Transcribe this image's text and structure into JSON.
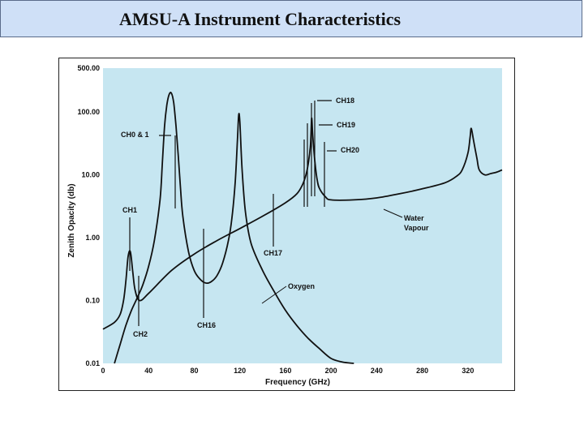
{
  "slide": {
    "title": "AMSU-A Instrument Characteristics"
  },
  "colors": {
    "plot_background": "#c6e6f1",
    "curve": "#111111",
    "title_bar": "#cfe0f7"
  },
  "chart_data": {
    "type": "line",
    "title": "",
    "xlabel": "Frequency (GHz)",
    "ylabel": "Zenith Opacity (db)",
    "xlim": [
      0,
      350
    ],
    "ylim": [
      0.01,
      500
    ],
    "yscale": "log",
    "grid": false,
    "x_ticks": [
      {
        "value": 0,
        "label": "0"
      },
      {
        "value": 40,
        "label": "40"
      },
      {
        "value": 80,
        "label": "80"
      },
      {
        "value": 120,
        "label": "120"
      },
      {
        "value": 160,
        "label": "160"
      },
      {
        "value": 200,
        "label": "200"
      },
      {
        "value": 240,
        "label": "240"
      },
      {
        "value": 280,
        "label": "280"
      },
      {
        "value": 320,
        "label": "320"
      }
    ],
    "y_ticks": [
      {
        "value": 0.01,
        "label": "0.01"
      },
      {
        "value": 0.1,
        "label": "0.10"
      },
      {
        "value": 1,
        "label": "1.00"
      },
      {
        "value": 10,
        "label": "10.00"
      },
      {
        "value": 100,
        "label": "100.00"
      },
      {
        "value": 500,
        "label": "500.00"
      }
    ],
    "series": [
      {
        "name": "Oxygen",
        "x": [
          10,
          15,
          20,
          25,
          30,
          35,
          40,
          45,
          50,
          52,
          54,
          56,
          58,
          60,
          62,
          64,
          66,
          68,
          70,
          75,
          80,
          85,
          90,
          95,
          100,
          105,
          110,
          113,
          116,
          118,
          119,
          120,
          122,
          125,
          130,
          140,
          150,
          160,
          170,
          180,
          190,
          200,
          210,
          220
        ],
        "y": [
          0.01,
          0.02,
          0.04,
          0.07,
          0.11,
          0.18,
          0.35,
          0.9,
          4,
          15,
          60,
          130,
          190,
          200,
          140,
          60,
          20,
          6,
          2.2,
          0.6,
          0.3,
          0.22,
          0.19,
          0.2,
          0.25,
          0.4,
          0.9,
          2,
          8,
          40,
          90,
          70,
          12,
          2.5,
          0.8,
          0.3,
          0.14,
          0.07,
          0.04,
          0.025,
          0.017,
          0.012,
          0.0105,
          0.01
        ]
      },
      {
        "name": "Water Vapour",
        "x": [
          0,
          10,
          15,
          18,
          20,
          22,
          24,
          26,
          28,
          32,
          40,
          60,
          80,
          100,
          120,
          140,
          160,
          170,
          175,
          178,
          180,
          182,
          183,
          184,
          186,
          188,
          190,
          195,
          200,
          220,
          240,
          260,
          280,
          300,
          310,
          315,
          320,
          322,
          323,
          325,
          328,
          330,
          335,
          340,
          345,
          350
        ],
        "y": [
          0.035,
          0.045,
          0.06,
          0.1,
          0.2,
          0.5,
          0.6,
          0.3,
          0.15,
          0.1,
          0.13,
          0.3,
          0.55,
          0.9,
          1.4,
          2.2,
          3.6,
          5,
          7,
          10,
          15,
          30,
          80,
          40,
          15,
          8,
          6,
          4.5,
          4,
          4,
          4.3,
          5,
          6,
          7.5,
          9.5,
          12,
          22,
          40,
          55,
          35,
          18,
          12,
          10,
          10.5,
          11,
          12
        ]
      }
    ],
    "channels": [
      {
        "label": "CH0 & 1",
        "x": 52
      },
      {
        "label": "CH1",
        "x": 23.8
      },
      {
        "label": "CH2",
        "x": 31.4
      },
      {
        "label": "CH16",
        "x": 89
      },
      {
        "label": "CH17",
        "x": 150
      },
      {
        "label": "CH18",
        "x": 183.3
      },
      {
        "label": "CH19",
        "x": 183.3
      },
      {
        "label": "CH20",
        "x": 183.3
      }
    ],
    "annotations": [
      "Oxygen",
      "Water",
      "Vapour"
    ]
  }
}
